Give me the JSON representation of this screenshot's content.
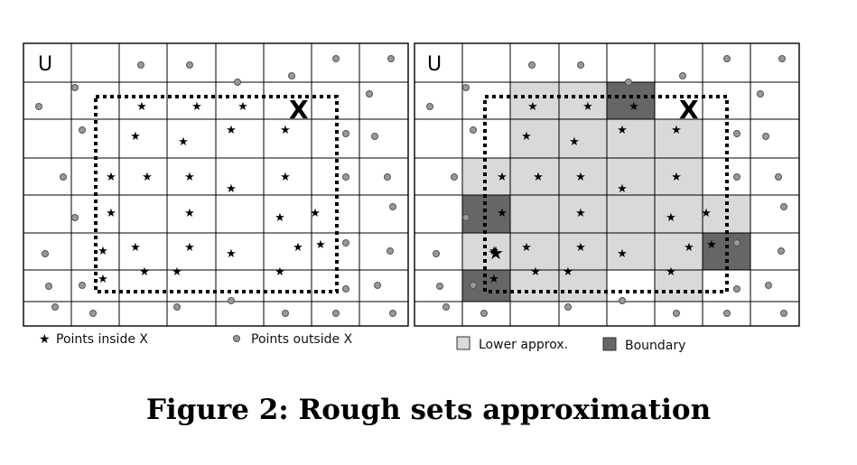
{
  "left_panel": {
    "universe_label": "U",
    "set_label": "X",
    "legend": [
      {
        "symbol": "star",
        "label": "Points inside X"
      },
      {
        "symbol": "dot",
        "label": "Points outside X"
      }
    ]
  },
  "right_panel": {
    "universe_label": "U",
    "set_label": "X",
    "legend": [
      {
        "label": "Lower approx.",
        "color": "#d9d9d9"
      },
      {
        "label": "Boundary",
        "color": "#666666"
      }
    ]
  },
  "caption": "Figure 2: Rough sets approximation",
  "colors": {
    "lower": "#d9d9d9",
    "boundary": "#666666",
    "dot": "#999999",
    "ink": "#000000"
  }
}
